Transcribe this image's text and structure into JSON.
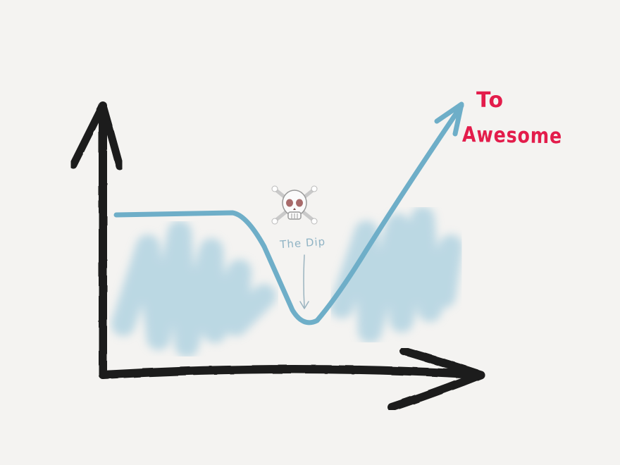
{
  "labels": {
    "target_line1": "To",
    "target_line2": "Awesome",
    "dip": "The Dip"
  },
  "icons": {
    "danger": "skull-crossbones-icon"
  },
  "colors": {
    "axis": "#1e1e1e",
    "curve": "#6eaec8",
    "shading": "#a9cfdf",
    "target_text": "#e31c4b",
    "dip_text": "#8fb3c4",
    "background": "#f4f3f1"
  }
}
